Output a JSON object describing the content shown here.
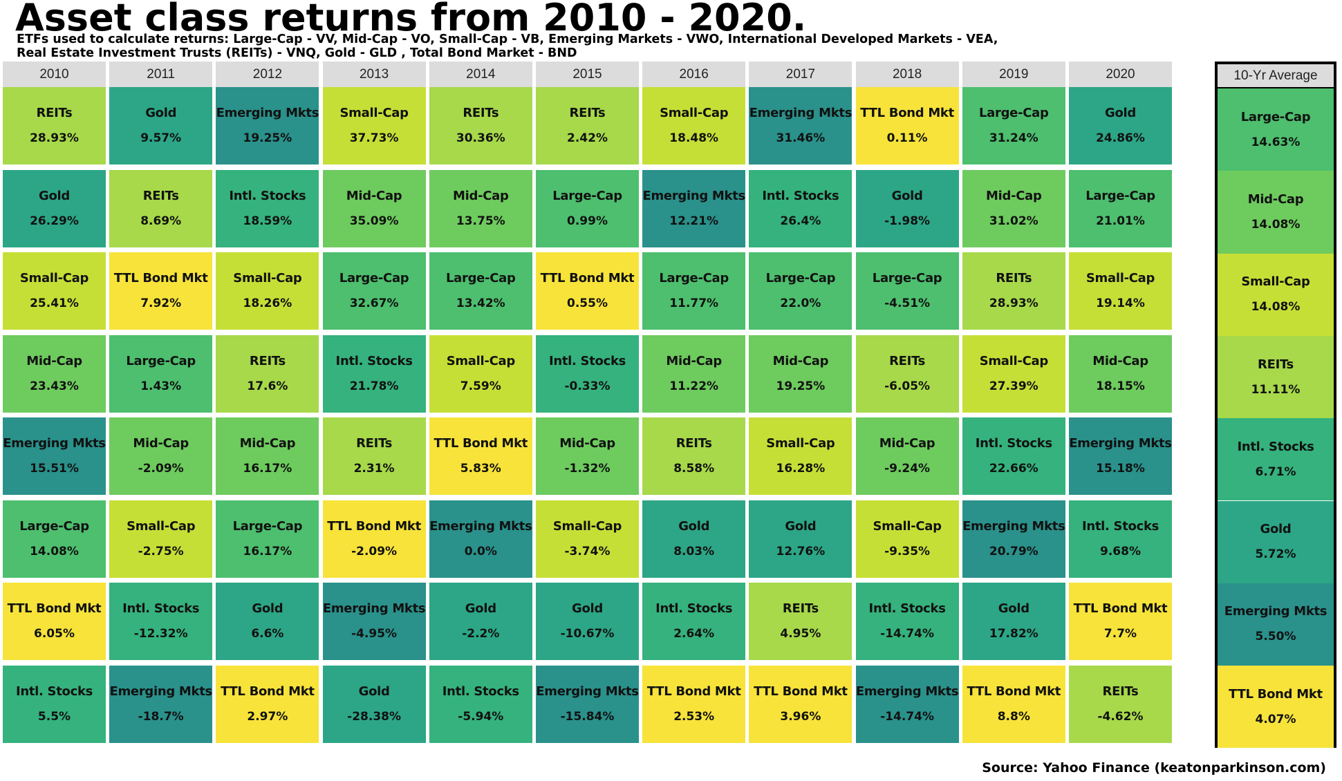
{
  "title": "Asset class returns from 2010 - 2020.",
  "subtitle_line1": "ETFs used to calculate returns: Large-Cap - VV, Mid-Cap - VO, Small-Cap - VB, Emerging Markets - VWO, International Developed Markets - VEA,",
  "subtitle_line2": "Real Estate Investment Trusts (REITs) - VNQ, Gold - GLD ,  Total Bond Market - BND",
  "source": "Source: Yahoo Finance (keatonparkinson.com)",
  "chart_data": {
    "type": "table",
    "description_of_order": "each year column ranked from highest to lowest return",
    "colors": {
      "TTL Bond Mkt": "#f7e33a",
      "Small-Cap": "#c6df36",
      "REITs": "#a7d94a",
      "Mid-Cap": "#6ecb5e",
      "Large-Cap": "#4dbf6e",
      "Intl. Stocks": "#35b27d",
      "Gold": "#2ca686",
      "Emerging Mkts": "#2a918b"
    },
    "years": [
      {
        "year": "2010",
        "cells": [
          {
            "asset": "REITs",
            "ret": "28.93%"
          },
          {
            "asset": "Gold",
            "ret": "26.29%"
          },
          {
            "asset": "Small-Cap",
            "ret": "25.41%"
          },
          {
            "asset": "Mid-Cap",
            "ret": "23.43%"
          },
          {
            "asset": "Emerging Mkts",
            "ret": "15.51%"
          },
          {
            "asset": "Large-Cap",
            "ret": "14.08%"
          },
          {
            "asset": "TTL Bond Mkt",
            "ret": "6.05%"
          },
          {
            "asset": "Intl. Stocks",
            "ret": "5.5%"
          }
        ]
      },
      {
        "year": "2011",
        "cells": [
          {
            "asset": "Gold",
            "ret": "9.57%"
          },
          {
            "asset": "REITs",
            "ret": "8.69%"
          },
          {
            "asset": "TTL Bond Mkt",
            "ret": "7.92%"
          },
          {
            "asset": "Large-Cap",
            "ret": "1.43%"
          },
          {
            "asset": "Mid-Cap",
            "ret": "-2.09%"
          },
          {
            "asset": "Small-Cap",
            "ret": "-2.75%"
          },
          {
            "asset": "Intl. Stocks",
            "ret": "-12.32%"
          },
          {
            "asset": "Emerging Mkts",
            "ret": "-18.7%"
          }
        ]
      },
      {
        "year": "2012",
        "cells": [
          {
            "asset": "Emerging Mkts",
            "ret": "19.25%"
          },
          {
            "asset": "Intl. Stocks",
            "ret": "18.59%"
          },
          {
            "asset": "Small-Cap",
            "ret": "18.26%"
          },
          {
            "asset": "REITs",
            "ret": "17.6%"
          },
          {
            "asset": "Mid-Cap",
            "ret": "16.17%"
          },
          {
            "asset": "Large-Cap",
            "ret": "16.17%"
          },
          {
            "asset": "Gold",
            "ret": "6.6%"
          },
          {
            "asset": "TTL Bond Mkt",
            "ret": "2.97%"
          }
        ]
      },
      {
        "year": "2013",
        "cells": [
          {
            "asset": "Small-Cap",
            "ret": "37.73%"
          },
          {
            "asset": "Mid-Cap",
            "ret": "35.09%"
          },
          {
            "asset": "Large-Cap",
            "ret": "32.67%"
          },
          {
            "asset": "Intl. Stocks",
            "ret": "21.78%"
          },
          {
            "asset": "REITs",
            "ret": "2.31%"
          },
          {
            "asset": "TTL Bond Mkt",
            "ret": "-2.09%"
          },
          {
            "asset": "Emerging Mkts",
            "ret": "-4.95%"
          },
          {
            "asset": "Gold",
            "ret": "-28.38%"
          }
        ]
      },
      {
        "year": "2014",
        "cells": [
          {
            "asset": "REITs",
            "ret": "30.36%"
          },
          {
            "asset": "Mid-Cap",
            "ret": "13.75%"
          },
          {
            "asset": "Large-Cap",
            "ret": "13.42%"
          },
          {
            "asset": "Small-Cap",
            "ret": "7.59%"
          },
          {
            "asset": "TTL Bond Mkt",
            "ret": "5.83%"
          },
          {
            "asset": "Emerging Mkts",
            "ret": "0.0%"
          },
          {
            "asset": "Gold",
            "ret": "-2.2%"
          },
          {
            "asset": "Intl. Stocks",
            "ret": "-5.94%"
          }
        ]
      },
      {
        "year": "2015",
        "cells": [
          {
            "asset": "REITs",
            "ret": "2.42%"
          },
          {
            "asset": "Large-Cap",
            "ret": "0.99%"
          },
          {
            "asset": "TTL Bond Mkt",
            "ret": "0.55%"
          },
          {
            "asset": "Intl. Stocks",
            "ret": "-0.33%"
          },
          {
            "asset": "Mid-Cap",
            "ret": "-1.32%"
          },
          {
            "asset": "Small-Cap",
            "ret": "-3.74%"
          },
          {
            "asset": "Gold",
            "ret": "-10.67%"
          },
          {
            "asset": "Emerging Mkts",
            "ret": "-15.84%"
          }
        ]
      },
      {
        "year": "2016",
        "cells": [
          {
            "asset": "Small-Cap",
            "ret": "18.48%"
          },
          {
            "asset": "Emerging Mkts",
            "ret": "12.21%"
          },
          {
            "asset": "Large-Cap",
            "ret": "11.77%"
          },
          {
            "asset": "Mid-Cap",
            "ret": "11.22%"
          },
          {
            "asset": "REITs",
            "ret": "8.58%"
          },
          {
            "asset": "Gold",
            "ret": "8.03%"
          },
          {
            "asset": "Intl. Stocks",
            "ret": "2.64%"
          },
          {
            "asset": "TTL Bond Mkt",
            "ret": "2.53%"
          }
        ]
      },
      {
        "year": "2017",
        "cells": [
          {
            "asset": "Emerging Mkts",
            "ret": "31.46%"
          },
          {
            "asset": "Intl. Stocks",
            "ret": "26.4%"
          },
          {
            "asset": "Large-Cap",
            "ret": "22.0%"
          },
          {
            "asset": "Mid-Cap",
            "ret": "19.25%"
          },
          {
            "asset": "Small-Cap",
            "ret": "16.28%"
          },
          {
            "asset": "Gold",
            "ret": "12.76%"
          },
          {
            "asset": "REITs",
            "ret": "4.95%"
          },
          {
            "asset": "TTL Bond Mkt",
            "ret": "3.96%"
          }
        ]
      },
      {
        "year": "2018",
        "cells": [
          {
            "asset": "TTL Bond Mkt",
            "ret": "0.11%"
          },
          {
            "asset": "Gold",
            "ret": "-1.98%"
          },
          {
            "asset": "Large-Cap",
            "ret": "-4.51%"
          },
          {
            "asset": "REITs",
            "ret": "-6.05%"
          },
          {
            "asset": "Mid-Cap",
            "ret": "-9.24%"
          },
          {
            "asset": "Small-Cap",
            "ret": "-9.35%"
          },
          {
            "asset": "Intl. Stocks",
            "ret": "-14.74%"
          },
          {
            "asset": "Emerging Mkts",
            "ret": "-14.74%"
          }
        ]
      },
      {
        "year": "2019",
        "cells": [
          {
            "asset": "Large-Cap",
            "ret": "31.24%"
          },
          {
            "asset": "Mid-Cap",
            "ret": "31.02%"
          },
          {
            "asset": "REITs",
            "ret": "28.93%"
          },
          {
            "asset": "Small-Cap",
            "ret": "27.39%"
          },
          {
            "asset": "Intl. Stocks",
            "ret": "22.66%"
          },
          {
            "asset": "Emerging Mkts",
            "ret": "20.79%"
          },
          {
            "asset": "Gold",
            "ret": "17.82%"
          },
          {
            "asset": "TTL Bond Mkt",
            "ret": "8.8%"
          }
        ]
      },
      {
        "year": "2020",
        "cells": [
          {
            "asset": "Gold",
            "ret": "24.86%"
          },
          {
            "asset": "Large-Cap",
            "ret": "21.01%"
          },
          {
            "asset": "Small-Cap",
            "ret": "19.14%"
          },
          {
            "asset": "Mid-Cap",
            "ret": "18.15%"
          },
          {
            "asset": "Emerging Mkts",
            "ret": "15.18%"
          },
          {
            "asset": "Intl. Stocks",
            "ret": "9.68%"
          },
          {
            "asset": "TTL Bond Mkt",
            "ret": "7.7%"
          },
          {
            "asset": "REITs",
            "ret": "-4.62%"
          }
        ]
      }
    ],
    "average": {
      "label": "10-Yr Average",
      "cells": [
        {
          "asset": "Large-Cap",
          "ret": "14.63%"
        },
        {
          "asset": "Mid-Cap",
          "ret": "14.08%"
        },
        {
          "asset": "Small-Cap",
          "ret": "14.08%"
        },
        {
          "asset": "REITs",
          "ret": "11.11%"
        },
        {
          "asset": "Intl. Stocks",
          "ret": "6.71%"
        },
        {
          "asset": "Gold",
          "ret": "5.72%"
        },
        {
          "asset": "Emerging Mkts",
          "ret": "5.50%"
        },
        {
          "asset": "TTL Bond Mkt",
          "ret": "4.07%"
        }
      ]
    }
  }
}
